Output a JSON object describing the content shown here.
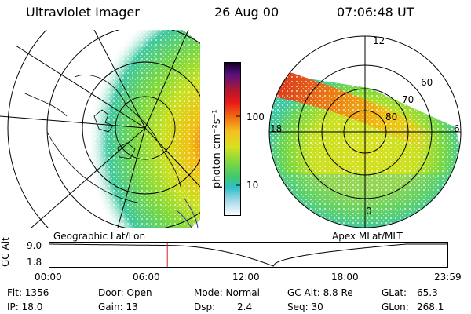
{
  "header": {
    "instrument": "Ultraviolet Imager",
    "date": "26 Aug 00",
    "time": "07:06:48 UT"
  },
  "colorbar": {
    "label": "photon cm⁻²s⁻¹",
    "ticks": [
      "100",
      "10"
    ]
  },
  "left_panel": {
    "caption": "Geographic Lat/Lon"
  },
  "right_panel": {
    "caption": "Apex MLat/MLT",
    "mlt_labels": [
      "12",
      "18",
      "6",
      "0"
    ],
    "mlat_labels": [
      "60",
      "70",
      "80"
    ]
  },
  "timeline": {
    "axis_label": "GC Alt",
    "y_ticks": [
      "9.0",
      "1.8"
    ],
    "x_ticks": [
      "00:00",
      "06:00",
      "12:00",
      "18:00",
      "23:59"
    ],
    "current_hour": 7.11,
    "current_alt_re": 8.8
  },
  "info": {
    "flt": "Flt: 1356",
    "ip": "IP: 18.0",
    "door": "Door: Open",
    "gain": "Gain: 13",
    "mode": "Mode: Normal",
    "dsp_label": "Dsp:",
    "dsp_value": "2.4",
    "gcalt": "GC Alt: 8.8 Re",
    "seq": "Seq: 30",
    "glat_label": "GLat:",
    "glat_value": "65.3",
    "glon_label": "GLon:",
    "glon_value": "268.1"
  },
  "colors": {
    "current_time_marker": "#d62020",
    "grid": "#000000"
  }
}
